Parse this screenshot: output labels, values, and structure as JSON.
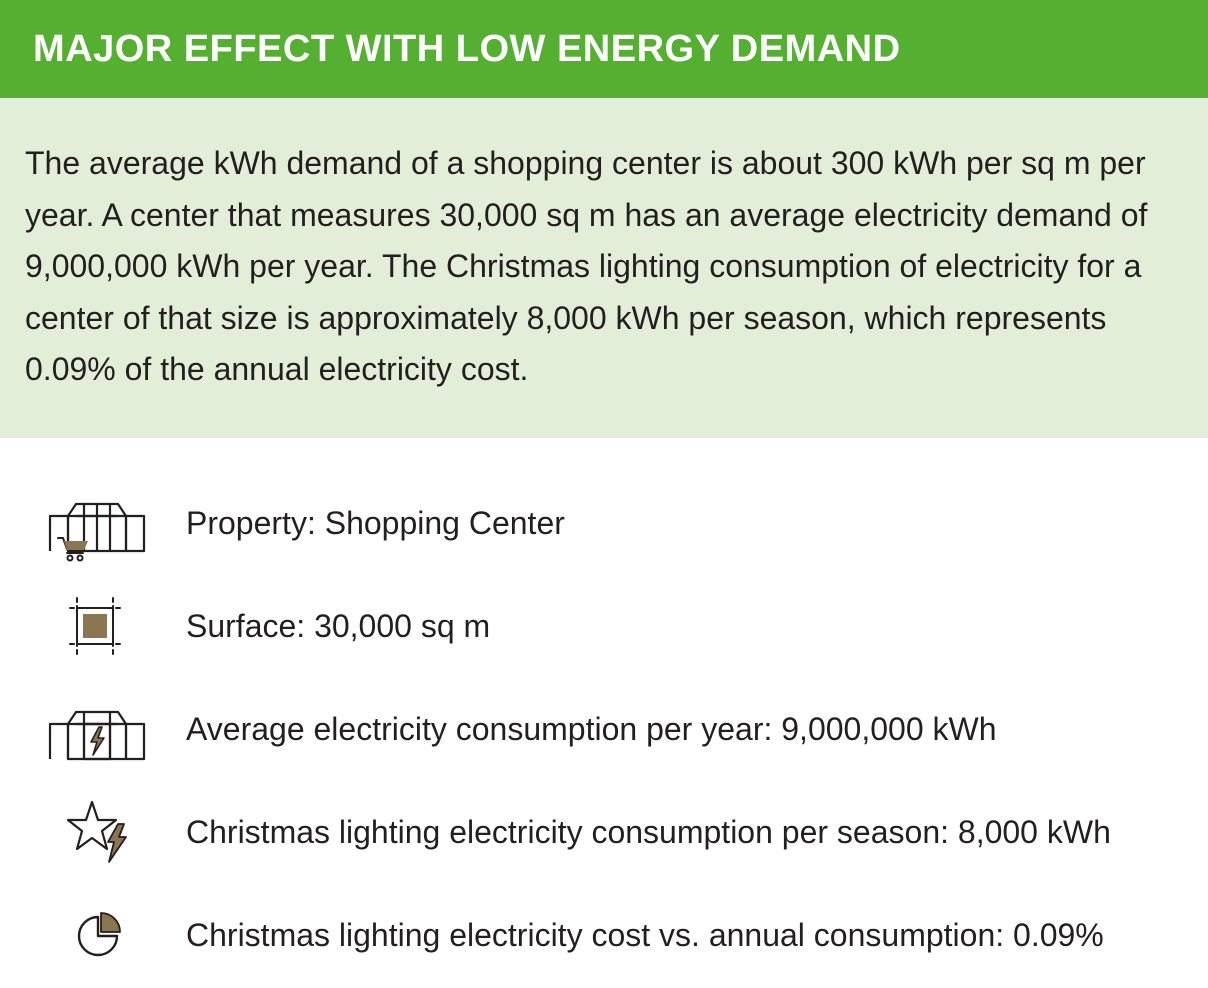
{
  "header": {
    "title": "MAJOR EFFECT WITH LOW ENERGY DEMAND"
  },
  "intro": {
    "text": "The average kWh demand of a shopping center is about 300 kWh per sq m per year. A center that measures 30,000 sq m has an average electricity demand of 9,000,000 kWh per year. The Christmas lighting consumption of electricity for a center of that size is approximately 8,000 kWh per season, which represents 0.09% of the annual electricity cost."
  },
  "facts": [
    {
      "icon": "shopping-center-icon",
      "label": "Property: Shopping Center"
    },
    {
      "icon": "surface-area-icon",
      "label": "Surface: 30,000 sq m"
    },
    {
      "icon": "building-electricity-icon",
      "label": "Average electricity consumption per year: 9,000,000 kWh"
    },
    {
      "icon": "star-lightning-icon",
      "label": "Christmas lighting electricity consumption per season: 8,000 kWh"
    },
    {
      "icon": "pie-chart-icon",
      "label": "Christmas lighting electricity cost vs. annual consumption: 0.09%"
    }
  ],
  "colors": {
    "header_bg": "#55b031",
    "intro_bg": "#e3eed9",
    "icon_accent": "#8b7651",
    "text": "#231f20"
  }
}
